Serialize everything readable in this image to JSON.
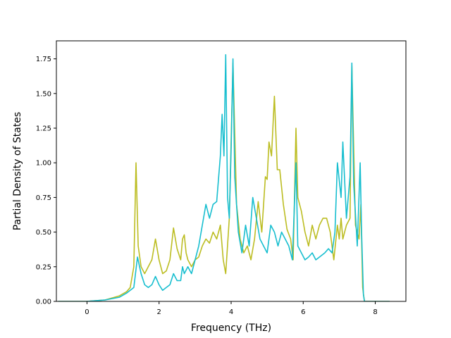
{
  "chart_data": {
    "type": "line",
    "title": "",
    "xlabel": "Frequency (THz)",
    "ylabel": "Partial Density of States",
    "xlim": [
      -0.85,
      8.85
    ],
    "ylim": [
      0.0,
      1.88
    ],
    "xticks": [
      0,
      2,
      4,
      6,
      8
    ],
    "xtick_labels": [
      "0",
      "2",
      "4",
      "6",
      "8"
    ],
    "yticks": [
      0.0,
      0.25,
      0.5,
      0.75,
      1.0,
      1.25,
      1.5,
      1.75
    ],
    "ytick_labels": [
      "0.00",
      "0.25",
      "0.50",
      "0.75",
      "1.00",
      "1.25",
      "1.50",
      "1.75"
    ],
    "grid": false,
    "legend": "none",
    "series": [
      {
        "color": "#bcbd22",
        "points": [
          [
            -0.8,
            0
          ],
          [
            0.0,
            0.0
          ],
          [
            0.5,
            0.01
          ],
          [
            0.9,
            0.04
          ],
          [
            1.1,
            0.07
          ],
          [
            1.2,
            0.1
          ],
          [
            1.3,
            0.25
          ],
          [
            1.36,
            1.0
          ],
          [
            1.42,
            0.4
          ],
          [
            1.5,
            0.25
          ],
          [
            1.6,
            0.2
          ],
          [
            1.7,
            0.25
          ],
          [
            1.8,
            0.3
          ],
          [
            1.9,
            0.45
          ],
          [
            2.0,
            0.3
          ],
          [
            2.1,
            0.2
          ],
          [
            2.2,
            0.22
          ],
          [
            2.3,
            0.3
          ],
          [
            2.4,
            0.53
          ],
          [
            2.5,
            0.38
          ],
          [
            2.6,
            0.3
          ],
          [
            2.65,
            0.45
          ],
          [
            2.7,
            0.48
          ],
          [
            2.75,
            0.35
          ],
          [
            2.8,
            0.3
          ],
          [
            2.9,
            0.25
          ],
          [
            3.0,
            0.3
          ],
          [
            3.1,
            0.32
          ],
          [
            3.2,
            0.4
          ],
          [
            3.3,
            0.45
          ],
          [
            3.4,
            0.42
          ],
          [
            3.5,
            0.5
          ],
          [
            3.6,
            0.45
          ],
          [
            3.7,
            0.55
          ],
          [
            3.78,
            0.3
          ],
          [
            3.85,
            0.2
          ],
          [
            3.95,
            0.6
          ],
          [
            4.05,
            1.72
          ],
          [
            4.15,
            0.7
          ],
          [
            4.25,
            0.45
          ],
          [
            4.35,
            0.35
          ],
          [
            4.45,
            0.4
          ],
          [
            4.55,
            0.3
          ],
          [
            4.65,
            0.45
          ],
          [
            4.75,
            0.72
          ],
          [
            4.85,
            0.5
          ],
          [
            4.95,
            0.9
          ],
          [
            5.0,
            0.88
          ],
          [
            5.05,
            1.15
          ],
          [
            5.12,
            1.05
          ],
          [
            5.2,
            1.48
          ],
          [
            5.28,
            0.95
          ],
          [
            5.35,
            0.95
          ],
          [
            5.45,
            0.7
          ],
          [
            5.55,
            0.52
          ],
          [
            5.65,
            0.45
          ],
          [
            5.72,
            0.3
          ],
          [
            5.8,
            1.25
          ],
          [
            5.85,
            0.75
          ],
          [
            5.95,
            0.65
          ],
          [
            6.05,
            0.5
          ],
          [
            6.15,
            0.4
          ],
          [
            6.25,
            0.55
          ],
          [
            6.35,
            0.45
          ],
          [
            6.45,
            0.55
          ],
          [
            6.55,
            0.6
          ],
          [
            6.65,
            0.6
          ],
          [
            6.75,
            0.5
          ],
          [
            6.85,
            0.3
          ],
          [
            6.95,
            0.55
          ],
          [
            7.0,
            0.45
          ],
          [
            7.05,
            0.6
          ],
          [
            7.1,
            0.45
          ],
          [
            7.2,
            0.55
          ],
          [
            7.3,
            0.6
          ],
          [
            7.35,
            1.7
          ],
          [
            7.45,
            0.55
          ],
          [
            7.55,
            0.45
          ],
          [
            7.6,
            0.7
          ],
          [
            7.65,
            0.1
          ],
          [
            7.7,
            0.0
          ],
          [
            8.4,
            0.0
          ]
        ]
      },
      {
        "color": "#17becf",
        "points": [
          [
            -0.8,
            0
          ],
          [
            0.0,
            0.0
          ],
          [
            0.5,
            0.01
          ],
          [
            0.9,
            0.03
          ],
          [
            1.1,
            0.06
          ],
          [
            1.3,
            0.1
          ],
          [
            1.4,
            0.32
          ],
          [
            1.5,
            0.2
          ],
          [
            1.6,
            0.12
          ],
          [
            1.7,
            0.1
          ],
          [
            1.8,
            0.12
          ],
          [
            1.9,
            0.18
          ],
          [
            2.0,
            0.12
          ],
          [
            2.1,
            0.08
          ],
          [
            2.2,
            0.1
          ],
          [
            2.3,
            0.12
          ],
          [
            2.4,
            0.2
          ],
          [
            2.5,
            0.15
          ],
          [
            2.6,
            0.15
          ],
          [
            2.65,
            0.25
          ],
          [
            2.7,
            0.2
          ],
          [
            2.8,
            0.25
          ],
          [
            2.9,
            0.2
          ],
          [
            3.0,
            0.3
          ],
          [
            3.1,
            0.4
          ],
          [
            3.2,
            0.55
          ],
          [
            3.3,
            0.7
          ],
          [
            3.4,
            0.6
          ],
          [
            3.5,
            0.7
          ],
          [
            3.6,
            0.72
          ],
          [
            3.7,
            1.05
          ],
          [
            3.75,
            1.35
          ],
          [
            3.8,
            1.05
          ],
          [
            3.85,
            1.78
          ],
          [
            3.9,
            0.75
          ],
          [
            3.95,
            0.6
          ],
          [
            4.0,
            1.1
          ],
          [
            4.05,
            1.75
          ],
          [
            4.1,
            0.9
          ],
          [
            4.2,
            0.5
          ],
          [
            4.3,
            0.35
          ],
          [
            4.4,
            0.55
          ],
          [
            4.5,
            0.4
          ],
          [
            4.6,
            0.75
          ],
          [
            4.7,
            0.6
          ],
          [
            4.8,
            0.45
          ],
          [
            4.9,
            0.4
          ],
          [
            5.0,
            0.35
          ],
          [
            5.1,
            0.55
          ],
          [
            5.2,
            0.5
          ],
          [
            5.3,
            0.4
          ],
          [
            5.4,
            0.5
          ],
          [
            5.5,
            0.45
          ],
          [
            5.6,
            0.4
          ],
          [
            5.7,
            0.3
          ],
          [
            5.8,
            1.0
          ],
          [
            5.85,
            0.4
          ],
          [
            5.95,
            0.35
          ],
          [
            6.05,
            0.3
          ],
          [
            6.15,
            0.32
          ],
          [
            6.25,
            0.35
          ],
          [
            6.35,
            0.3
          ],
          [
            6.5,
            0.33
          ],
          [
            6.6,
            0.35
          ],
          [
            6.7,
            0.38
          ],
          [
            6.8,
            0.35
          ],
          [
            6.88,
            0.5
          ],
          [
            6.95,
            1.0
          ],
          [
            7.05,
            0.75
          ],
          [
            7.1,
            1.15
          ],
          [
            7.2,
            0.6
          ],
          [
            7.3,
            0.9
          ],
          [
            7.35,
            1.72
          ],
          [
            7.4,
            0.85
          ],
          [
            7.5,
            0.4
          ],
          [
            7.58,
            1.0
          ],
          [
            7.62,
            0.5
          ],
          [
            7.67,
            0.05
          ],
          [
            7.7,
            0.0
          ],
          [
            8.4,
            0.0
          ]
        ]
      }
    ]
  }
}
